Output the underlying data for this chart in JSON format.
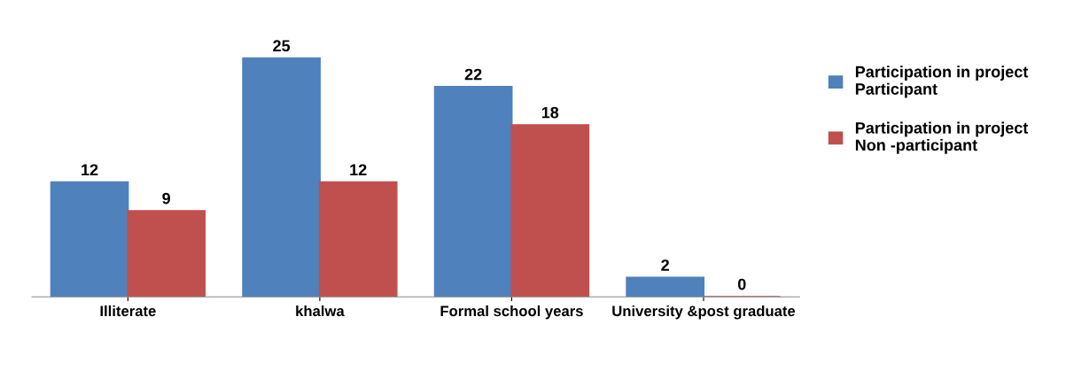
{
  "chart_data": {
    "type": "bar",
    "categories": [
      "Illiterate",
      "khalwa",
      "Formal school years",
      "University &post graduate"
    ],
    "series": [
      {
        "name": "Participation in project\nParticipant",
        "color": "#4f81bd",
        "values": [
          12,
          25,
          22,
          2
        ]
      },
      {
        "name": "Participation in project\nNon -participant",
        "color": "#c0504d",
        "values": [
          9,
          12,
          18,
          0
        ]
      }
    ],
    "data_labels": true,
    "legend": "right"
  }
}
